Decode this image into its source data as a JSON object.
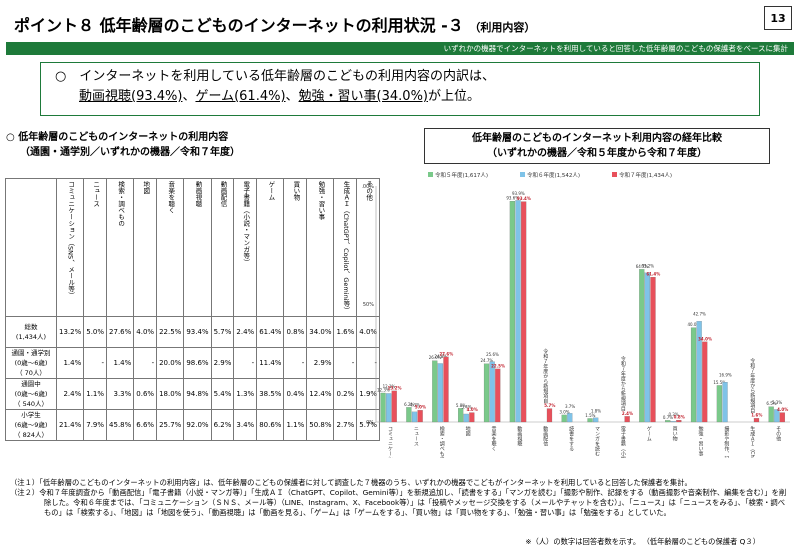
{
  "header": {
    "title": "ポイント８ 低年齢層のこどものインターネットの利用状況 -３",
    "title_suffix": "（利用内容）",
    "page_number": "13",
    "subbar": "いずれかの機器でインターネットを利用していると回答した低年齢層のこどもの保護者をベースに集計"
  },
  "summary": {
    "bullet": "○",
    "line1": "インターネットを利用している低年齢層のこどもの利用内容の内訳は、",
    "hl1": "動画視聴(93.4%)",
    "sep1": "、",
    "hl2": "ゲーム(61.4%)",
    "sep2": "、",
    "hl3": "勉強・習い事(34.0%)",
    "tail": "が上位。"
  },
  "left_heading": {
    "line1": "○ 低年齢層のこどものインターネットの利用内容",
    "line2": "（通園・通学別／いずれかの機器／令和７年度）"
  },
  "right_heading": {
    "line1": "低年齢層のこどものインターネット利用内容の経年比較",
    "line2": "（いずれかの機器／令和５年度から令和７年度）"
  },
  "table": {
    "columns": [
      "コミュニケーション（SNS、メール等）",
      "ニュース",
      "検索・調べもの",
      "地図",
      "音楽を聴く",
      "動画視聴",
      "動画配信",
      "電子書籍（小説・マンガ等）",
      "ゲーム",
      "買い物",
      "勉強・習い事",
      "生成ＡＩ（ChatGPT、Copilot、Gemini等）",
      "その他"
    ],
    "rows": [
      {
        "label1": "総数",
        "label2": "(1,434人)",
        "values": [
          "13.2%",
          "5.0%",
          "27.6%",
          "4.0%",
          "22.5%",
          "93.4%",
          "5.7%",
          "2.4%",
          "61.4%",
          "0.8%",
          "34.0%",
          "1.6%",
          "4.0%"
        ]
      },
      {
        "label1": "通園・通学別",
        "label2": "(0歳～6歳)",
        "label3": "（ 70人）",
        "values": [
          "1.4%",
          "-",
          "1.4%",
          "-",
          "20.0%",
          "98.6%",
          "2.9%",
          "-",
          "11.4%",
          "-",
          "2.9%",
          "-",
          "-"
        ]
      },
      {
        "label1": "通園中",
        "label2": "(0歳～6歳)",
        "label3": "（ 540人）",
        "values": [
          "2.4%",
          "1.1%",
          "3.3%",
          "0.6%",
          "18.0%",
          "94.8%",
          "5.4%",
          "1.3%",
          "38.5%",
          "0.4%",
          "12.4%",
          "0.2%",
          "1.9%"
        ]
      },
      {
        "label1": "小学生",
        "label2": "(6歳～9歳)",
        "label3": "（ 824人）",
        "values": [
          "21.4%",
          "7.9%",
          "45.8%",
          "6.6%",
          "25.7%",
          "92.0%",
          "6.2%",
          "3.4%",
          "80.6%",
          "1.1%",
          "50.8%",
          "2.7%",
          "5.7%"
        ]
      }
    ]
  },
  "chart_data": {
    "type": "bar",
    "categories": [
      "コミュニケーション（SNS、メール等）",
      "ニュース",
      "検索・調べもの",
      "地図",
      "音楽を聴く",
      "動画視聴",
      "動画配信",
      "読書をする",
      "マンガを読む",
      "電子書籍（小説・マンガ等）",
      "ゲーム",
      "買い物",
      "勉強・習い事",
      "撮影や制作、記録をする",
      "生成ＡＩ（ChatGPT、Copilot、Gemini等）",
      "その他"
    ],
    "series": [
      {
        "name": "令和５年度(1,617人)",
        "color": "#7ac98a",
        "values": [
          12.3,
          6.2,
          26.0,
          5.8,
          24.7,
          93.6,
          null,
          3.0,
          1.5,
          null,
          64.7,
          0.7,
          40.0,
          15.5,
          null,
          6.5
        ]
      },
      {
        "name": "令和６年度(1,542人)",
        "color": "#7fc3e8",
        "values": [
          12.1,
          4.3,
          24.8,
          3.4,
          25.6,
          93.9,
          null,
          3.7,
          1.8,
          null,
          63.2,
          0.3,
          42.7,
          16.9,
          null,
          5.3
        ]
      },
      {
        "name": "令和７年度(1,434人)",
        "color": "#e8505b",
        "values": [
          13.2,
          5.0,
          27.6,
          4.0,
          22.5,
          93.4,
          5.7,
          null,
          null,
          2.4,
          61.4,
          0.8,
          34.0,
          null,
          1.6,
          4.0
        ]
      }
    ],
    "new_item_label": "令和７年度から新規項目",
    "yticks": [
      "0%",
      "50%",
      "100%"
    ],
    "ylim": [
      0,
      100
    ]
  },
  "notes": {
    "n1_label": "（注１）",
    "n1": "「低年齢層のこどものインターネットの利用内容」は、低年齢層のこどもの保護者に対して調査した７機器のうち、いずれかの機器でこどもがインターネットを利用していると回答した保護者を集計。",
    "n2_label": "（注２）",
    "n2": "令和７年度調査から「動画配信」「電子書籍（小説・マンガ等）」「生成ＡＩ（ChatGPT、Copilot、Gemini等）」を新規追加し、「読書をする」「マンガを読む」「撮影や制作、記録をする（動画撮影や音楽制作、編集を含む）」を削除した。令和６年度までは、「コミュニケーション（ＳＮＳ、メール等）（LINE、Instagram、X、Facebook等）」は「投稿やメッセージ交換をする（メールやチャットを含む）」、「ニュース」は「ニュースをみる」、「検索・調べもの」は「検索する」、「地図」は「地図を使う」、「動画視聴」は「動画を見る」、「ゲーム」は「ゲームをする」、「買い物」は「買い物をする」、「勉強・習い事」は「勉強をする」としていた。",
    "footer": "※（人）の数字は回答者数を示す。 （低年齢層のこどもの保護者 Q３）"
  }
}
